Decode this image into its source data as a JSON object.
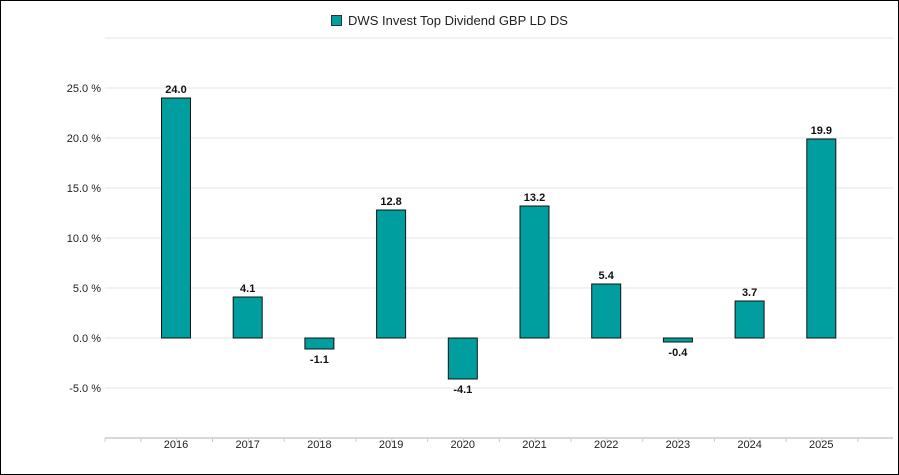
{
  "chart_data": {
    "type": "bar",
    "legend": [
      "DWS Invest Top Dividend GBP LD DS"
    ],
    "legend_position": "top-center",
    "categories": [
      "2016",
      "2017",
      "2018",
      "2019",
      "2020",
      "2021",
      "2022",
      "2023",
      "2024",
      "2025"
    ],
    "series": [
      {
        "name": "DWS Invest Top Dividend GBP LD DS",
        "values": [
          24.0,
          4.1,
          -1.1,
          12.8,
          -4.1,
          13.2,
          5.4,
          -0.4,
          3.7,
          19.9
        ],
        "labels": [
          "24.0",
          "4.1",
          "-1.1",
          "12.8",
          "-4.1",
          "13.2",
          "5.4",
          "-0.4",
          "3.7",
          "19.9"
        ],
        "color": "#009e9e"
      }
    ],
    "y_ticks": [
      25,
      20,
      15,
      10,
      5,
      0,
      -5
    ],
    "y_tick_labels": [
      "25.0 %",
      "20.0 %",
      "15.0 %",
      "10.0 %",
      "5.0 %",
      "0.0 %",
      "-5.0 %"
    ],
    "ylim": [
      -10,
      30
    ],
    "grid": true,
    "title": "",
    "xlabel": "",
    "ylabel": ""
  }
}
